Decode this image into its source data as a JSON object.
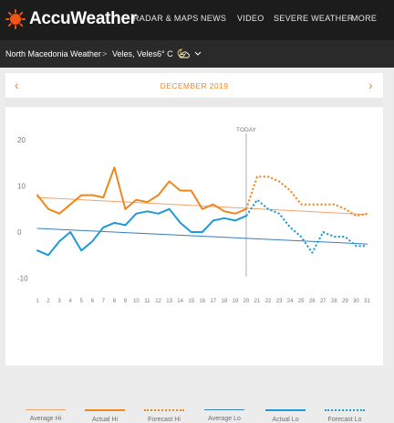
{
  "header": {
    "logo_text": "AccuWeather",
    "nav": [
      "RADAR & MAPS",
      "NEWS",
      "VIDEO",
      "SEVERE WEATHER",
      "MORE"
    ]
  },
  "location_bar": {
    "country_weather": "North Macedonia Weather",
    "separator": ">",
    "city": "Veles, Veles",
    "temp": "6° C",
    "condition_icon": "partly-cloudy-night-icon",
    "chevron_icon": "chevron-down-icon"
  },
  "month_nav": {
    "title": "DECEMBER 2019",
    "prev_icon": "chevron-left-icon",
    "next_icon": "chevron-right-icon"
  },
  "colors": {
    "accent": "#f0861e",
    "average_hi": "#f2a36b",
    "actual_hi": "#f0861e",
    "average_lo": "#3a7eb8",
    "actual_lo": "#1e9ad6"
  },
  "chart_data": {
    "type": "line",
    "today_label": "TODAY",
    "today_day": 20,
    "x": [
      1,
      2,
      3,
      4,
      5,
      6,
      7,
      8,
      9,
      10,
      11,
      12,
      13,
      14,
      15,
      16,
      17,
      18,
      19,
      20,
      21,
      22,
      23,
      24,
      25,
      26,
      27,
      28,
      29,
      30,
      31
    ],
    "x_tick_labels": [
      "1",
      "2",
      "3",
      "4",
      "5",
      "6",
      "7",
      "8",
      "9",
      "10",
      "11",
      "12",
      "13",
      "14",
      "15",
      "16",
      "17",
      "18",
      "19",
      "20",
      "21",
      "22",
      "23",
      "24",
      "25",
      "26",
      "27",
      "28",
      "29",
      "30",
      "31"
    ],
    "y_tick_labels": [
      "20",
      "10",
      "0",
      "-10"
    ],
    "y_ticks": [
      20,
      10,
      0,
      -10
    ],
    "ylim": [
      -12,
      22
    ],
    "grid": false,
    "series": [
      {
        "name": "Average Hi",
        "style": "solid",
        "x": [
          1,
          31
        ],
        "values": [
          7.5,
          3.8
        ]
      },
      {
        "name": "Actual Hi",
        "style": "solid",
        "x": [
          1,
          2,
          3,
          4,
          5,
          6,
          7,
          8,
          9,
          10,
          11,
          12,
          13,
          14,
          15,
          16,
          17,
          18,
          19,
          20
        ],
        "values": [
          8,
          5,
          4,
          6,
          8,
          8,
          7.5,
          14,
          5,
          7,
          6.5,
          8,
          11,
          9,
          9,
          5,
          6,
          4.5,
          4,
          5
        ]
      },
      {
        "name": "Forecast Hi",
        "style": "dotted",
        "x": [
          20,
          21,
          22,
          23,
          24,
          25,
          26,
          27,
          28,
          29,
          30,
          31
        ],
        "values": [
          5,
          12,
          12,
          11,
          9,
          6,
          6,
          6,
          6,
          5,
          3.5,
          4
        ]
      },
      {
        "name": "Average Lo",
        "style": "solid",
        "x": [
          1,
          31
        ],
        "values": [
          0.8,
          -2.6
        ]
      },
      {
        "name": "Actual Lo",
        "style": "solid",
        "x": [
          1,
          2,
          3,
          4,
          5,
          6,
          7,
          8,
          9,
          10,
          11,
          12,
          13,
          14,
          15,
          16,
          17,
          18,
          19,
          20
        ],
        "values": [
          -4,
          -5,
          -2,
          0,
          -4,
          -2,
          1,
          2,
          1.5,
          4,
          4.5,
          4,
          5,
          2,
          0,
          0,
          2.5,
          3,
          2.5,
          3.5
        ]
      },
      {
        "name": "Forecast Lo",
        "style": "dotted",
        "x": [
          20,
          21,
          22,
          23,
          24,
          25,
          26,
          27,
          28,
          29,
          30,
          31
        ],
        "values": [
          3.5,
          7,
          5,
          4,
          1,
          -1,
          -4.5,
          0,
          -1,
          -1,
          -3,
          -3
        ]
      }
    ]
  },
  "legend": [
    "Average Hi",
    "Actual Hi",
    "Forecast Hi",
    "Average Lo",
    "Actual Lo",
    "Forecast Lo"
  ]
}
